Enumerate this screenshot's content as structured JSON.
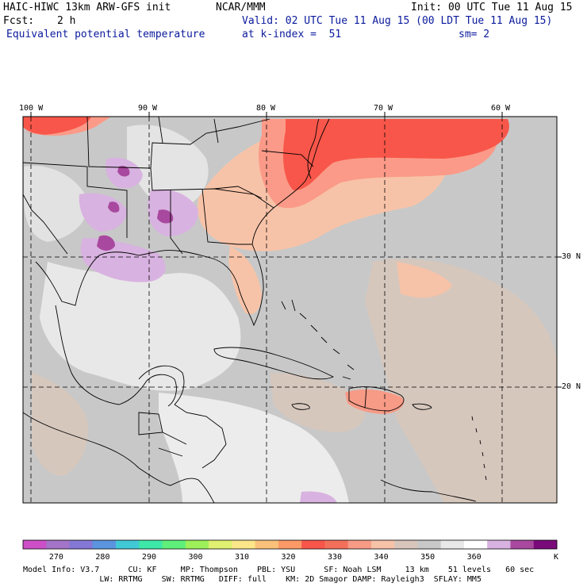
{
  "header": {
    "model_title": "HAIC-HIWC 13km ARW-GFS init",
    "org": "NCAR/MMM",
    "init_time": "Init: 00 UTC Tue 11 Aug 15",
    "fcst_label": "Fcst:",
    "fcst_value": "2 h",
    "valid_time": "Valid: 02 UTC Tue 11 Aug 15 (00 LDT Tue 11 Aug 15)",
    "field_name": "Equivalent potential temperature",
    "level": "at k-index =  51",
    "smoothing": "sm= 2"
  },
  "map": {
    "longitude_labels": [
      "100 W",
      "90 W",
      "80 W",
      "70 W",
      "60 W"
    ],
    "latitude_labels": [
      "30 N",
      "20 N"
    ],
    "field_colors": {
      "land_light": "#e8e8e8",
      "ocean_gray": "#c8c8c8",
      "warm_low": "#f7c3a8",
      "warm_mid": "#fb9a88",
      "warm_high": "#f8564a",
      "cool_purple": "#d8b2e0",
      "deep_purple": "#8a2a8e",
      "tan": "#d6c7bd"
    }
  },
  "colorbar": {
    "colors": [
      "#cc4fc8",
      "#a474c8",
      "#8477d6",
      "#5b95e0",
      "#42c9d6",
      "#3ee8a8",
      "#5ef07a",
      "#9ef05a",
      "#e0f070",
      "#fbe68a",
      "#fbc17a",
      "#fb9a66",
      "#f8564a",
      "#f2705a",
      "#f79a86",
      "#f6c2a8",
      "#d8c6bc",
      "#c8c8c8",
      "#e8e8e8",
      "#ffffff",
      "#d8b2e0",
      "#a8489e",
      "#7a0a7a"
    ],
    "labels": [
      "270",
      "280",
      "290",
      "300",
      "310",
      "320",
      "330",
      "340",
      "350",
      "360"
    ],
    "units": "K"
  },
  "footer": {
    "line1": "Model Info: V3.7      CU: KF     MP: Thompson    PBL: YSU      SF: Noah LSM     13 km    51 levels   60 sec",
    "line2": "                LW: RRTMG    SW: RRTMG   DIFF: full    KM: 2D Smagor DAMP: Rayleigh3  SFLAY: MM5"
  }
}
